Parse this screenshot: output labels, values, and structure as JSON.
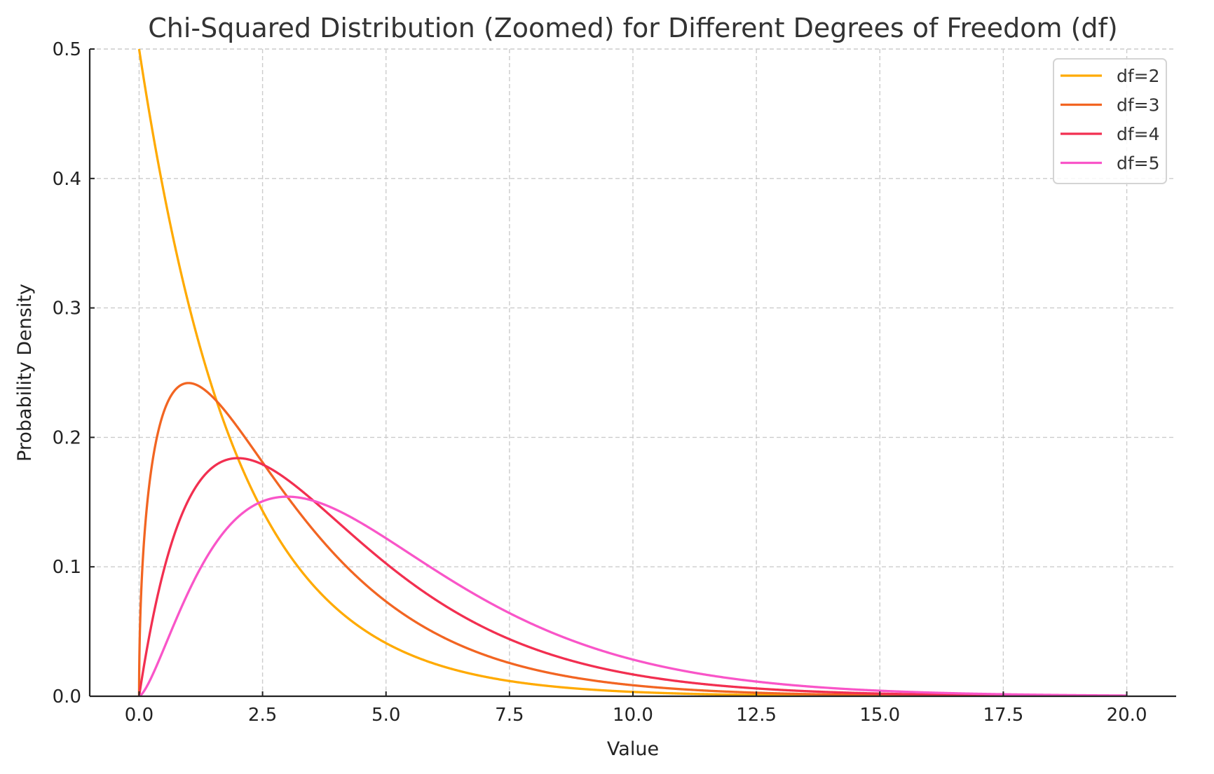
{
  "chart_data": {
    "type": "line",
    "title": "Chi-Squared Distribution (Zoomed) for Different Degrees of Freedom (df)",
    "xlabel": "Value",
    "ylabel": "Probability Density",
    "xlim": [
      -1,
      21
    ],
    "ylim": [
      0,
      0.5
    ],
    "x_range": [
      0,
      20
    ],
    "xticks": [
      "0.0",
      "2.5",
      "5.0",
      "7.5",
      "10.0",
      "12.5",
      "15.0",
      "17.5",
      "20.0"
    ],
    "xtick_values": [
      0,
      2.5,
      5,
      7.5,
      10,
      12.5,
      15,
      17.5,
      20
    ],
    "yticks": [
      "0.0",
      "0.1",
      "0.2",
      "0.3",
      "0.4",
      "0.5"
    ],
    "ytick_values": [
      0,
      0.1,
      0.2,
      0.3,
      0.4,
      0.5
    ],
    "grid": true,
    "legend_position": "top-right",
    "series": [
      {
        "name": "df=2",
        "df": 2,
        "color": "#FFAA00"
      },
      {
        "name": "df=3",
        "df": 3,
        "color": "#F26522"
      },
      {
        "name": "df=4",
        "df": 4,
        "color": "#F22F50"
      },
      {
        "name": "df=5",
        "df": 5,
        "color": "#F955C8"
      }
    ]
  }
}
